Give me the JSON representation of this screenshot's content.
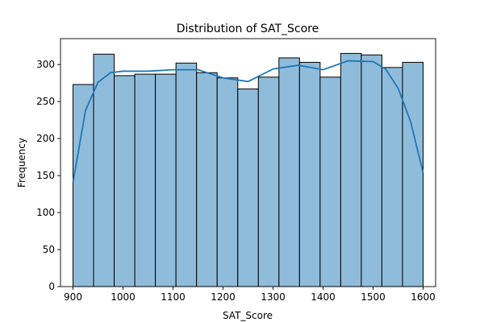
{
  "chart_data": {
    "type": "bar",
    "title": "Distribution of SAT_Score",
    "xlabel": "SAT_Score",
    "ylabel": "Frequency",
    "xlim": [
      875,
      1625
    ],
    "ylim": [
      0,
      335
    ],
    "bin_start": 900,
    "bin_end": 1600,
    "values": [
      273,
      314,
      285,
      287,
      287,
      302,
      289,
      282,
      267,
      283,
      309,
      303,
      283,
      315,
      313,
      296,
      303
    ],
    "x_ticks": [
      900,
      1000,
      1100,
      1200,
      1300,
      1400,
      1500,
      1600
    ],
    "y_ticks": [
      0,
      50,
      100,
      150,
      200,
      250,
      300
    ],
    "kde": {
      "x": [
        900,
        925,
        950,
        975,
        1000,
        1050,
        1100,
        1150,
        1200,
        1250,
        1300,
        1350,
        1400,
        1450,
        1500,
        1525,
        1550,
        1575,
        1600
      ],
      "y": [
        141,
        238,
        276,
        289,
        291,
        291,
        293,
        293,
        282,
        277,
        294,
        299,
        293,
        305,
        304,
        294,
        268,
        223,
        154
      ]
    },
    "grid": false,
    "colors": {
      "bar_fill": "#8fbcdb",
      "bar_edge": "#000000",
      "kde_line": "#1f77b4"
    }
  }
}
